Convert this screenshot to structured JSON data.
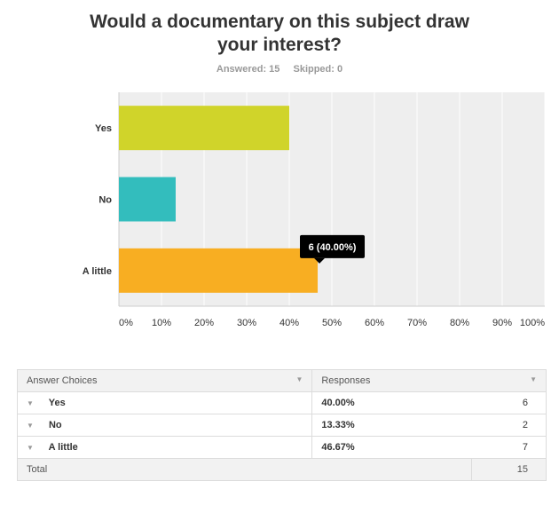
{
  "header": {
    "title_line1": "Would a documentary on this subject draw",
    "title_line2": "your interest?",
    "answered": "Answered: 15",
    "skipped": "Skipped: 0"
  },
  "chart_data": {
    "type": "bar",
    "orientation": "horizontal",
    "categories": [
      "Yes",
      "No",
      "A little"
    ],
    "values": [
      40.0,
      13.33,
      46.67
    ],
    "xlim": [
      0,
      100
    ],
    "ticks": [
      "0%",
      "10%",
      "20%",
      "30%",
      "40%",
      "50%",
      "60%",
      "70%",
      "80%",
      "90%",
      "100%"
    ],
    "grid": true,
    "colors": [
      "#d0d42a",
      "#33bdbd",
      "#f8ae22"
    ],
    "tooltip": "6 (40.00%)"
  },
  "table": {
    "headers": [
      "Answer Choices",
      "Responses"
    ],
    "rows": [
      {
        "choice": "Yes",
        "percent": "40.00%",
        "count": "6"
      },
      {
        "choice": "No",
        "percent": "13.33%",
        "count": "2"
      },
      {
        "choice": "A little",
        "percent": "46.67%",
        "count": "7"
      }
    ],
    "total_label": "Total",
    "total_value": "15"
  }
}
